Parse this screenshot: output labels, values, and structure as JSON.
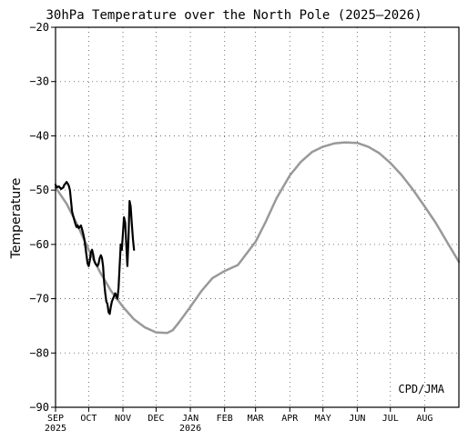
{
  "chart_data": {
    "type": "line",
    "title": "30hPa Temperature over the North Pole (2025–2026)",
    "ylabel": "Temperature",
    "xlabel": "",
    "ylim": [
      -90,
      -20
    ],
    "yticks": [
      -20,
      -30,
      -40,
      -50,
      -60,
      -70,
      -80,
      -90
    ],
    "ytick_labels": [
      "−20",
      "−30",
      "−40",
      "−50",
      "−60",
      "−70",
      "−80",
      "−90"
    ],
    "x_unit": "day index from SEP 1, 2025",
    "xlim": [
      0,
      365
    ],
    "xticks": [
      {
        "day": 0,
        "label": "SEP"
      },
      {
        "day": 30,
        "label": "OCT"
      },
      {
        "day": 61,
        "label": "NOV"
      },
      {
        "day": 91,
        "label": "DEC"
      },
      {
        "day": 122,
        "label": "JAN"
      },
      {
        "day": 153,
        "label": "FEB"
      },
      {
        "day": 181,
        "label": "MAR"
      },
      {
        "day": 212,
        "label": "APR"
      },
      {
        "day": 242,
        "label": "MAY"
      },
      {
        "day": 273,
        "label": "JUN"
      },
      {
        "day": 303,
        "label": "JUL"
      },
      {
        "day": 334,
        "label": "AUG"
      }
    ],
    "year_labels": [
      {
        "day": 0,
        "label": "2025"
      },
      {
        "day": 122,
        "label": "2026"
      }
    ],
    "grid": true,
    "annotation": "CPD/JMA",
    "series": [
      {
        "name": "",
        "color": "#999999",
        "points": [
          [
            0,
            -49.5
          ],
          [
            10,
            -52.5
          ],
          [
            20,
            -56.5
          ],
          [
            30,
            -61
          ],
          [
            40,
            -65
          ],
          [
            50,
            -68.5
          ],
          [
            61,
            -71.5
          ],
          [
            71,
            -73.8
          ],
          [
            81,
            -75.3
          ],
          [
            91,
            -76.2
          ],
          [
            101,
            -76.3
          ],
          [
            106,
            -75.8
          ],
          [
            112,
            -74.3
          ],
          [
            122,
            -71.5
          ],
          [
            132,
            -68.6
          ],
          [
            142,
            -66.2
          ],
          [
            153,
            -64.9
          ],
          [
            165,
            -63.8
          ],
          [
            181,
            -59.5
          ],
          [
            190,
            -55.9
          ],
          [
            200,
            -51.5
          ],
          [
            212,
            -47.3
          ],
          [
            222,
            -44.8
          ],
          [
            232,
            -43
          ],
          [
            242,
            -42
          ],
          [
            252,
            -41.4
          ],
          [
            262,
            -41.2
          ],
          [
            273,
            -41.3
          ],
          [
            283,
            -42
          ],
          [
            293,
            -43.2
          ],
          [
            303,
            -45
          ],
          [
            313,
            -47.2
          ],
          [
            323,
            -49.8
          ],
          [
            334,
            -53
          ],
          [
            344,
            -56
          ],
          [
            355,
            -59.8
          ],
          [
            365,
            -63.2
          ]
        ]
      },
      {
        "name": "",
        "color": "#000000",
        "points": [
          [
            0,
            -49
          ],
          [
            1,
            -49.5
          ],
          [
            3,
            -49.3
          ],
          [
            5,
            -49.8
          ],
          [
            7,
            -49.5
          ],
          [
            8,
            -49
          ],
          [
            9,
            -48.8
          ],
          [
            10,
            -48.5
          ],
          [
            11,
            -48.8
          ],
          [
            12,
            -49.2
          ],
          [
            13,
            -50
          ],
          [
            14,
            -52
          ],
          [
            15,
            -54
          ],
          [
            17,
            -55.5
          ],
          [
            18,
            -56.2
          ],
          [
            19,
            -56.8
          ],
          [
            20,
            -56.5
          ],
          [
            21,
            -57
          ],
          [
            22,
            -56.8
          ],
          [
            23,
            -56.5
          ],
          [
            24,
            -57.2
          ],
          [
            25,
            -58
          ],
          [
            26,
            -59
          ],
          [
            27,
            -60.5
          ],
          [
            28,
            -62
          ],
          [
            29,
            -63.5
          ],
          [
            30,
            -64
          ],
          [
            31,
            -63
          ],
          [
            32,
            -61.5
          ],
          [
            33,
            -61
          ],
          [
            34,
            -61.8
          ],
          [
            35,
            -63
          ],
          [
            36,
            -63.5
          ],
          [
            37,
            -63.8
          ],
          [
            38,
            -64
          ],
          [
            39,
            -63.5
          ],
          [
            40,
            -62.5
          ],
          [
            41,
            -62
          ],
          [
            42,
            -62.5
          ],
          [
            43,
            -64
          ],
          [
            44,
            -67
          ],
          [
            45,
            -69
          ],
          [
            46,
            -70.5
          ],
          [
            47,
            -71
          ],
          [
            48,
            -72.5
          ],
          [
            49,
            -72.8
          ],
          [
            50,
            -71.5
          ],
          [
            51,
            -70.5
          ],
          [
            52,
            -70
          ],
          [
            53,
            -69.5
          ],
          [
            54,
            -69
          ],
          [
            55,
            -69.5
          ],
          [
            56,
            -70
          ],
          [
            57,
            -68
          ],
          [
            58,
            -64
          ],
          [
            59,
            -60
          ],
          [
            60,
            -61
          ],
          [
            61,
            -58
          ],
          [
            62,
            -55
          ],
          [
            63,
            -56
          ],
          [
            64,
            -60
          ],
          [
            65,
            -64
          ],
          [
            66,
            -59
          ],
          [
            67,
            -52
          ],
          [
            68,
            -53
          ],
          [
            69,
            -56
          ],
          [
            70,
            -59
          ],
          [
            71,
            -61
          ]
        ]
      }
    ]
  }
}
